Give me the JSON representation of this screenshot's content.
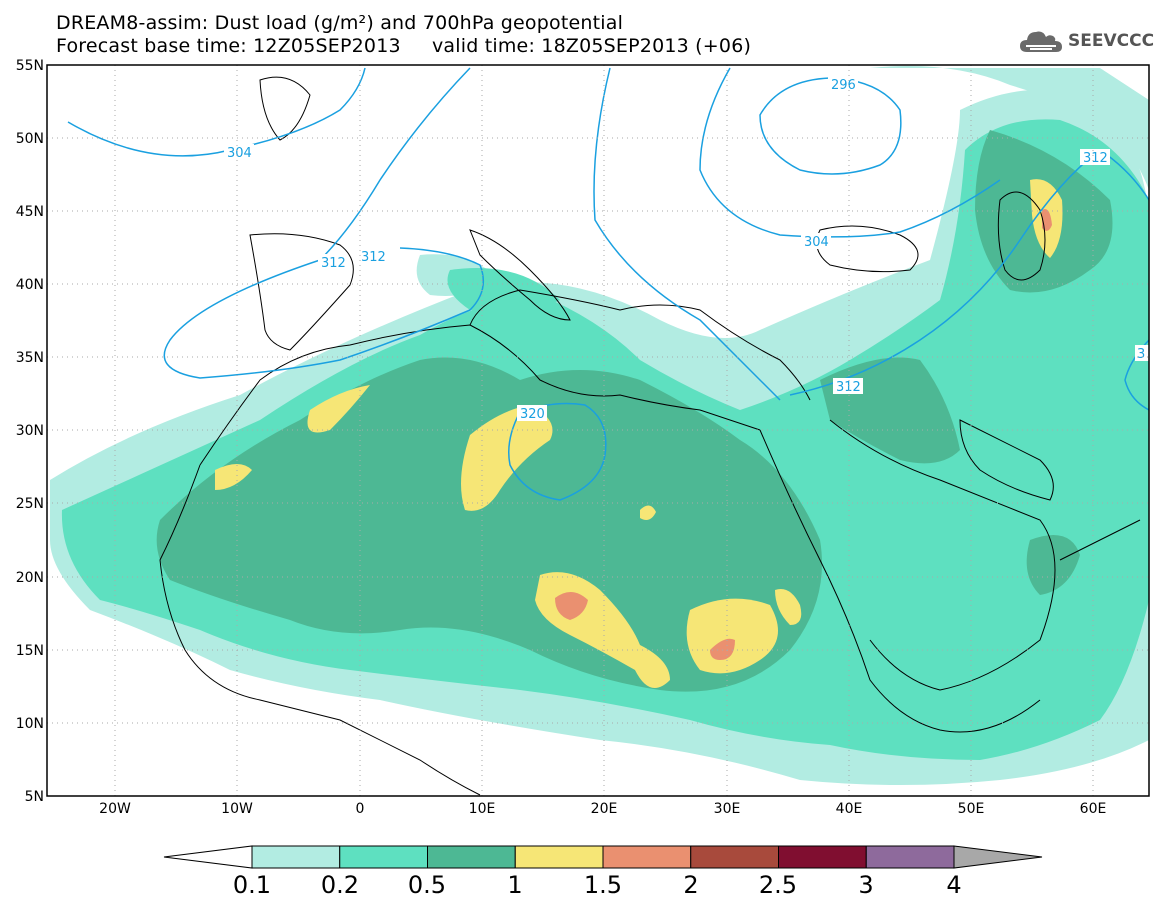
{
  "header": {
    "title_line1": "DREAM8-assim: Dust load (g/m²) and 700hPa geopotential",
    "title_line2": "Forecast base time: 12Z05SEP2013     valid time: 18Z05SEP2013 (+06)"
  },
  "logo": {
    "text": "SEEVCCC",
    "icon": "cloud-icon"
  },
  "map": {
    "lon_ticks": [
      "20W",
      "10W",
      "0",
      "10E",
      "20E",
      "30E",
      "40E",
      "50E",
      "60E"
    ],
    "lat_ticks": [
      "55N",
      "50N",
      "45N",
      "40N",
      "35N",
      "30N",
      "25N",
      "20N",
      "15N",
      "10N",
      "5N"
    ],
    "contour_labels": [
      "304",
      "312",
      "312",
      "320",
      "296",
      "304",
      "312",
      "312",
      "3"
    ],
    "contour_color": "#1aa0e0",
    "coastline_color": "#000000"
  },
  "colorbar": {
    "labels": [
      "0.1",
      "0.2",
      "0.5",
      "1",
      "1.5",
      "2",
      "2.5",
      "3",
      "4"
    ],
    "colors": [
      "#b2ece2",
      "#5ee0c0",
      "#4db894",
      "#f6e676",
      "#ea9070",
      "#a84a3c",
      "#800e30",
      "#8e6a9c",
      "#a8a8a8"
    ]
  }
}
